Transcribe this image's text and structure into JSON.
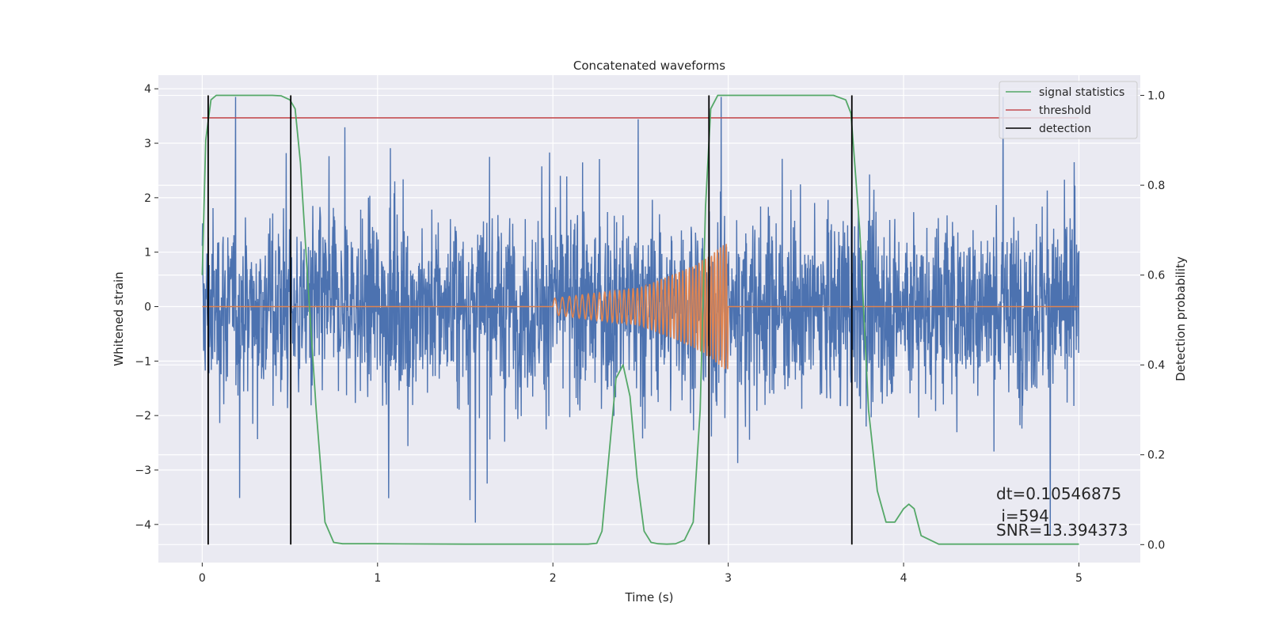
{
  "chart_data": {
    "type": "line",
    "title": "Concatenated waveforms",
    "xlabel": "Time (s)",
    "ylabel": "Whitened strain",
    "y2label": "Detection probability",
    "xlim": [
      -0.25,
      5.35
    ],
    "ylim": [
      -4.7,
      4.25
    ],
    "y2lim": [
      -0.04,
      1.045
    ],
    "x_ticks": [
      0,
      1,
      2,
      3,
      4,
      5
    ],
    "x_tick_labels": [
      "0",
      "1",
      "2",
      "3",
      "4",
      "5"
    ],
    "y_ticks": [
      -4,
      -3,
      -2,
      -1,
      0,
      1,
      2,
      3,
      4
    ],
    "y_tick_labels": [
      "−4",
      "−3",
      "−2",
      "−1",
      "0",
      "1",
      "2",
      "3",
      "4"
    ],
    "y2_ticks": [
      0.0,
      0.2,
      0.4,
      0.6,
      0.8,
      1.0
    ],
    "y2_tick_labels": [
      "0.0",
      "0.2",
      "0.4",
      "0.6",
      "0.8",
      "1.0"
    ],
    "grid": true,
    "legend_position": "top-right",
    "colors": {
      "strain": "#4c72b0",
      "injected_signal": "#dd8452",
      "signal_statistics": "#55a868",
      "threshold": "#c44e52",
      "detection": "#000000",
      "background": "#eaeaf2",
      "grid": "#ffffff"
    },
    "series": [
      {
        "name": "signal statistics",
        "axis": "right",
        "x": [
          0.0,
          0.02,
          0.05,
          0.08,
          0.12,
          0.2,
          0.3,
          0.4,
          0.45,
          0.5,
          0.53,
          0.56,
          0.6,
          0.65,
          0.7,
          0.75,
          0.8,
          1.0,
          1.5,
          2.0,
          2.2,
          2.25,
          2.28,
          2.32,
          2.36,
          2.4,
          2.44,
          2.48,
          2.52,
          2.56,
          2.6,
          2.65,
          2.7,
          2.75,
          2.8,
          2.84,
          2.87,
          2.9,
          2.94,
          3.0,
          3.2,
          3.4,
          3.6,
          3.67,
          3.7,
          3.75,
          3.8,
          3.85,
          3.9,
          3.95,
          4.0,
          4.03,
          4.06,
          4.1,
          4.2,
          4.5,
          5.0
        ],
        "y": [
          0.6,
          0.9,
          0.99,
          1.0,
          1.0,
          1.0,
          1.0,
          1.0,
          0.999,
          0.99,
          0.97,
          0.85,
          0.6,
          0.3,
          0.05,
          0.005,
          0.002,
          0.002,
          0.001,
          0.001,
          0.001,
          0.003,
          0.03,
          0.2,
          0.37,
          0.4,
          0.33,
          0.15,
          0.03,
          0.005,
          0.002,
          0.001,
          0.002,
          0.01,
          0.05,
          0.3,
          0.75,
          0.97,
          1.0,
          1.0,
          1.0,
          1.0,
          1.0,
          0.99,
          0.96,
          0.7,
          0.3,
          0.12,
          0.05,
          0.05,
          0.08,
          0.09,
          0.08,
          0.02,
          0.001,
          0.001,
          0.001
        ]
      },
      {
        "name": "threshold",
        "axis": "right",
        "x": [
          0.0,
          5.0
        ],
        "y": [
          0.95,
          0.95
        ]
      },
      {
        "name": "detection",
        "axis": "right",
        "type": "vlines",
        "x": [
          0.034,
          0.505,
          2.89,
          3.705
        ],
        "y_range": [
          0.0,
          1.0
        ]
      },
      {
        "name": "",
        "axis": "left",
        "description_free": true,
        "x_range": [
          0.0,
          5.0
        ],
        "typical_range": [
          -1.0,
          1.2
        ],
        "extreme_range": [
          -4.3,
          3.85
        ]
      },
      {
        "name": "",
        "axis": "left",
        "x": [
          0.0,
          2.0,
          2.5,
          2.8,
          2.9,
          3.0,
          5.0
        ],
        "y_amplitude": [
          0.0,
          0.15,
          0.35,
          0.75,
          0.95,
          1.2,
          0.0
        ]
      }
    ],
    "legend": [
      "signal statistics",
      "threshold",
      "detection"
    ],
    "annotations": [
      "dt=0.10546875",
      " i=594",
      "SNR=13.394373"
    ]
  }
}
